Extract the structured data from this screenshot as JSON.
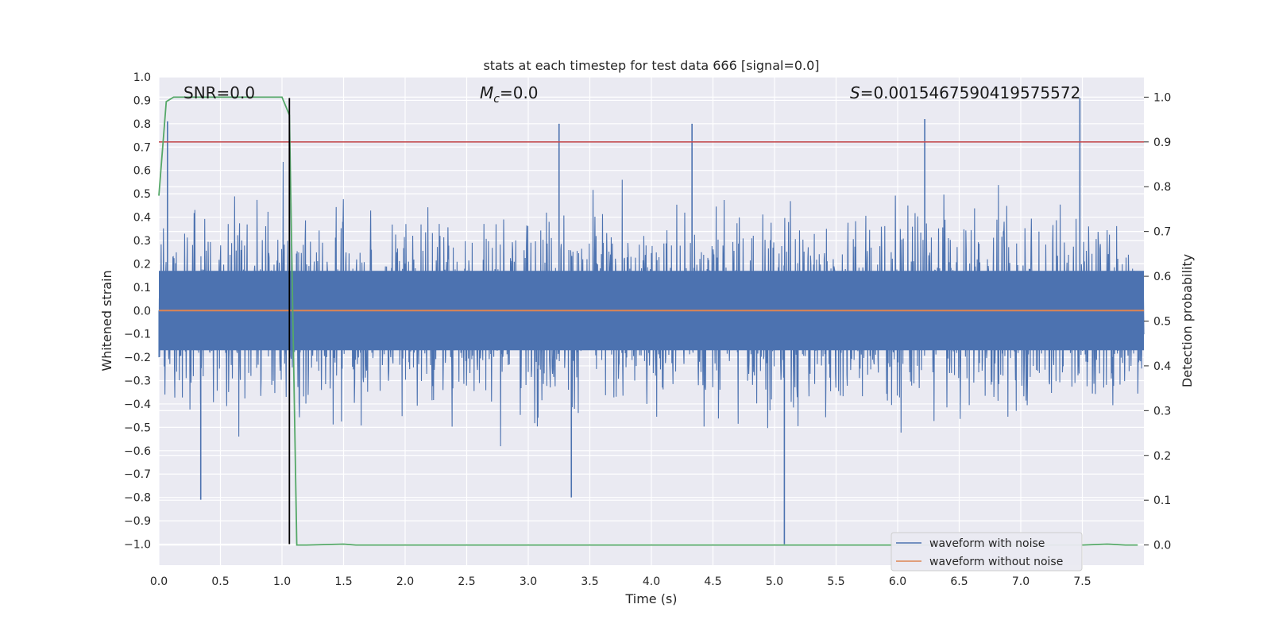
{
  "chart_data": {
    "type": "line",
    "title": "stats at each timestep for test data 666 [signal=0.0]",
    "xlabel": "Time (s)",
    "ylabel_left": "Whitened strain",
    "ylabel_right": "Detection probability",
    "xlim": [
      0.0,
      8.0
    ],
    "ylim_left": [
      -1.09,
      1.0
    ],
    "ylim_right": [
      -0.045,
      1.045
    ],
    "x_ticks": [
      "0.0",
      "0.5",
      "1.0",
      "1.5",
      "2.0",
      "2.5",
      "3.0",
      "3.5",
      "4.0",
      "4.5",
      "5.0",
      "5.5",
      "6.0",
      "6.5",
      "7.0",
      "7.5"
    ],
    "y_left_ticks": [
      "1.0",
      "0.9",
      "0.8",
      "0.7",
      "0.6",
      "0.5",
      "0.4",
      "0.3",
      "0.2",
      "0.1",
      "0.0",
      "−0.1",
      "−0.2",
      "−0.3",
      "−0.4",
      "−0.5",
      "−0.6",
      "−0.7",
      "−0.8",
      "−0.9",
      "−1.0"
    ],
    "y_right_ticks": [
      "1.0",
      "0.9",
      "0.8",
      "0.7",
      "0.6",
      "0.5",
      "0.4",
      "0.3",
      "0.2",
      "0.1",
      "0.0"
    ],
    "grid": true,
    "annotations": {
      "snr": "SNR=0.0",
      "mc_symbol": "M",
      "mc_sub": "c",
      "mc_value": "=0.0",
      "s_symbol": "S",
      "s_value": "=0.0015467590419575572"
    },
    "legend": {
      "position": "lower right",
      "entries": [
        {
          "label": "waveform with noise",
          "color": "#4c72b0"
        },
        {
          "label": "waveform without noise",
          "color": "#dd8452"
        }
      ]
    },
    "series": [
      {
        "name": "waveform with noise",
        "axis": "left",
        "color": "#4c72b0",
        "style": "noise",
        "amplitude": 0.3,
        "peak_max": 0.91,
        "peak_min": -1.0
      },
      {
        "name": "waveform without noise",
        "axis": "left",
        "color": "#dd8452",
        "constant": 0.0
      },
      {
        "name": "detection probability",
        "axis": "right",
        "color": "#55a868",
        "x": [
          0.0,
          0.06,
          0.12,
          0.3,
          0.6,
          0.9,
          1.0,
          1.06,
          1.12,
          1.2,
          1.5,
          1.6,
          3.0,
          5.0,
          7.0,
          7.5,
          7.7,
          7.85,
          7.95
        ],
        "y": [
          0.78,
          0.99,
          1.0,
          1.0,
          1.0,
          1.0,
          1.0,
          0.96,
          0.0,
          0.0,
          0.002,
          0.0,
          0.0,
          0.0,
          0.0,
          0.0,
          0.002,
          0.0,
          0.0
        ]
      },
      {
        "name": "threshold",
        "axis": "right",
        "color": "#c44e52",
        "constant": 0.9
      },
      {
        "name": "marker",
        "axis": "left",
        "color": "#000000",
        "vline_x": 1.06,
        "y_range": [
          -1.0,
          0.91
        ]
      }
    ]
  }
}
